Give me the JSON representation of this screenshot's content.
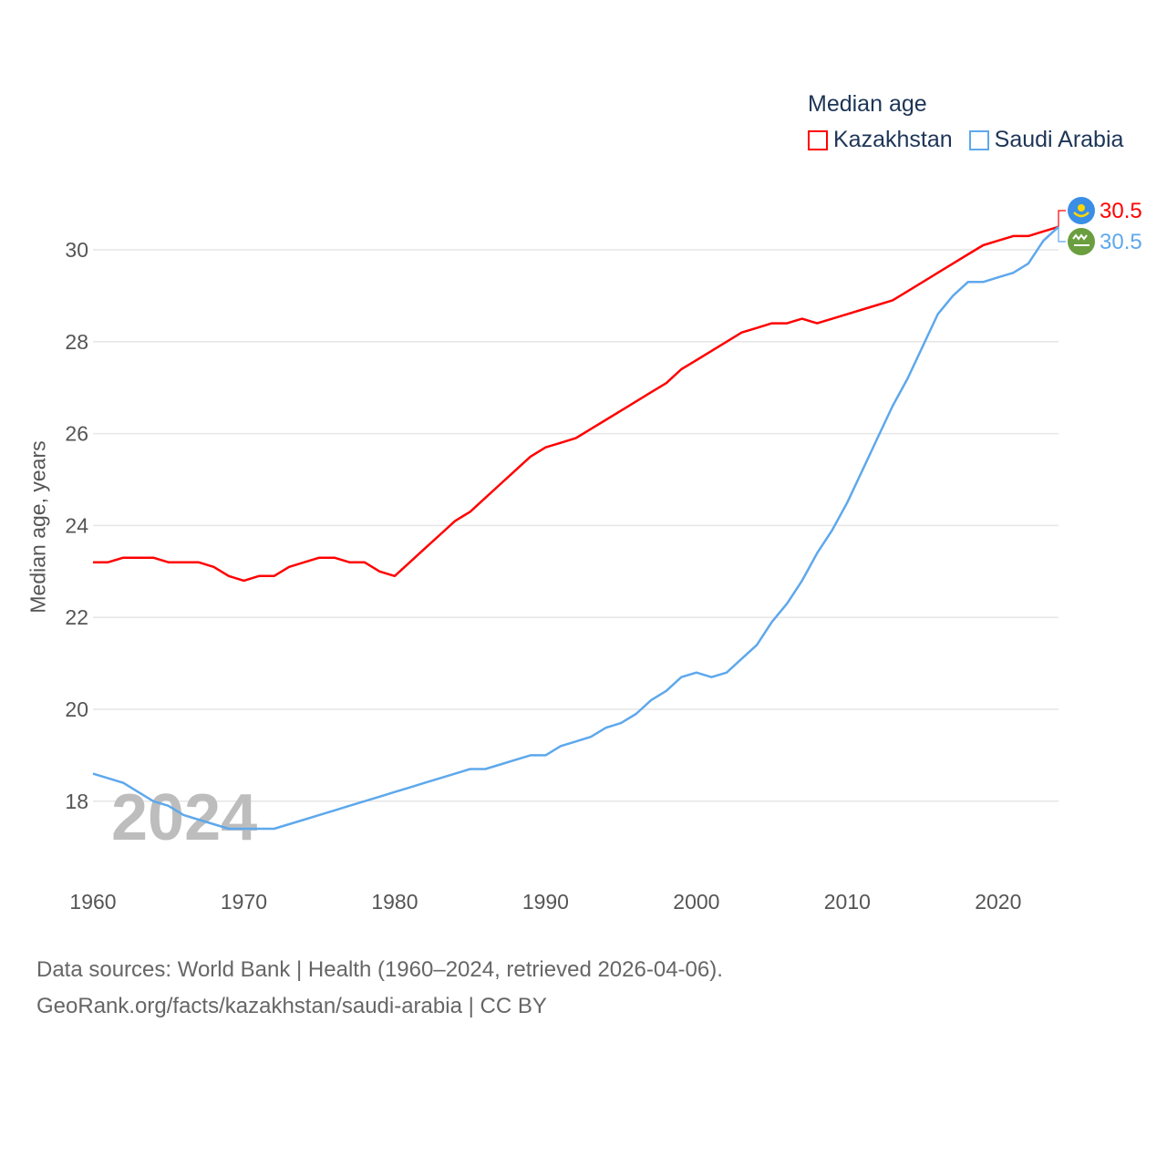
{
  "chart_data": {
    "type": "line",
    "title": "Median age",
    "xlabel": "",
    "ylabel": "Median age, years",
    "xlim": [
      1960,
      2024
    ],
    "ylim": [
      17,
      31
    ],
    "x_ticks": [
      1960,
      1970,
      1980,
      1990,
      2000,
      2010,
      2020
    ],
    "y_ticks": [
      18,
      20,
      22,
      24,
      26,
      28,
      30
    ],
    "grid": true,
    "legend_placement": "top-right",
    "year_label": "2024",
    "x": [
      1960,
      1961,
      1962,
      1963,
      1964,
      1965,
      1966,
      1967,
      1968,
      1969,
      1970,
      1971,
      1972,
      1973,
      1974,
      1975,
      1976,
      1977,
      1978,
      1979,
      1980,
      1981,
      1982,
      1983,
      1984,
      1985,
      1986,
      1987,
      1988,
      1989,
      1990,
      1991,
      1992,
      1993,
      1994,
      1995,
      1996,
      1997,
      1998,
      1999,
      2000,
      2001,
      2002,
      2003,
      2004,
      2005,
      2006,
      2007,
      2008,
      2009,
      2010,
      2011,
      2012,
      2013,
      2014,
      2015,
      2016,
      2017,
      2018,
      2019,
      2020,
      2021,
      2022,
      2023,
      2024
    ],
    "series": [
      {
        "name": "Kazakhstan",
        "color": "#ff0000",
        "end_label": "30.5",
        "values": [
          23.2,
          23.2,
          23.3,
          23.3,
          23.3,
          23.2,
          23.2,
          23.2,
          23.1,
          22.9,
          22.8,
          22.9,
          22.9,
          23.1,
          23.2,
          23.3,
          23.3,
          23.2,
          23.2,
          23.0,
          22.9,
          23.2,
          23.5,
          23.8,
          24.1,
          24.3,
          24.6,
          24.9,
          25.2,
          25.5,
          25.7,
          25.8,
          25.9,
          26.1,
          26.3,
          26.5,
          26.7,
          26.9,
          27.1,
          27.4,
          27.6,
          27.8,
          28.0,
          28.2,
          28.3,
          28.4,
          28.4,
          28.5,
          28.4,
          28.5,
          28.6,
          28.7,
          28.8,
          28.9,
          29.1,
          29.3,
          29.5,
          29.7,
          29.9,
          30.1,
          30.2,
          30.3,
          30.3,
          30.4,
          30.5
        ]
      },
      {
        "name": "Saudi Arabia",
        "color": "#5ea8ec",
        "end_label": "30.5",
        "values": [
          18.6,
          18.5,
          18.4,
          18.2,
          18.0,
          17.9,
          17.7,
          17.6,
          17.5,
          17.4,
          17.4,
          17.4,
          17.4,
          17.5,
          17.6,
          17.7,
          17.8,
          17.9,
          18.0,
          18.1,
          18.2,
          18.3,
          18.4,
          18.5,
          18.6,
          18.7,
          18.7,
          18.8,
          18.9,
          19.0,
          19.0,
          19.2,
          19.3,
          19.4,
          19.6,
          19.7,
          19.9,
          20.2,
          20.4,
          20.7,
          20.8,
          20.7,
          20.8,
          21.1,
          21.4,
          21.9,
          22.3,
          22.8,
          23.4,
          23.9,
          24.5,
          25.2,
          25.9,
          26.6,
          27.2,
          27.9,
          28.6,
          29.0,
          29.3,
          29.3,
          29.4,
          29.5,
          29.7,
          30.2,
          30.5
        ]
      }
    ]
  },
  "footer": {
    "line1": "Data sources: World Bank | Health (1960–2024, retrieved 2026-04-06).",
    "line2": "GeoRank.org/facts/kazakhstan/saudi-arabia | CC BY"
  }
}
